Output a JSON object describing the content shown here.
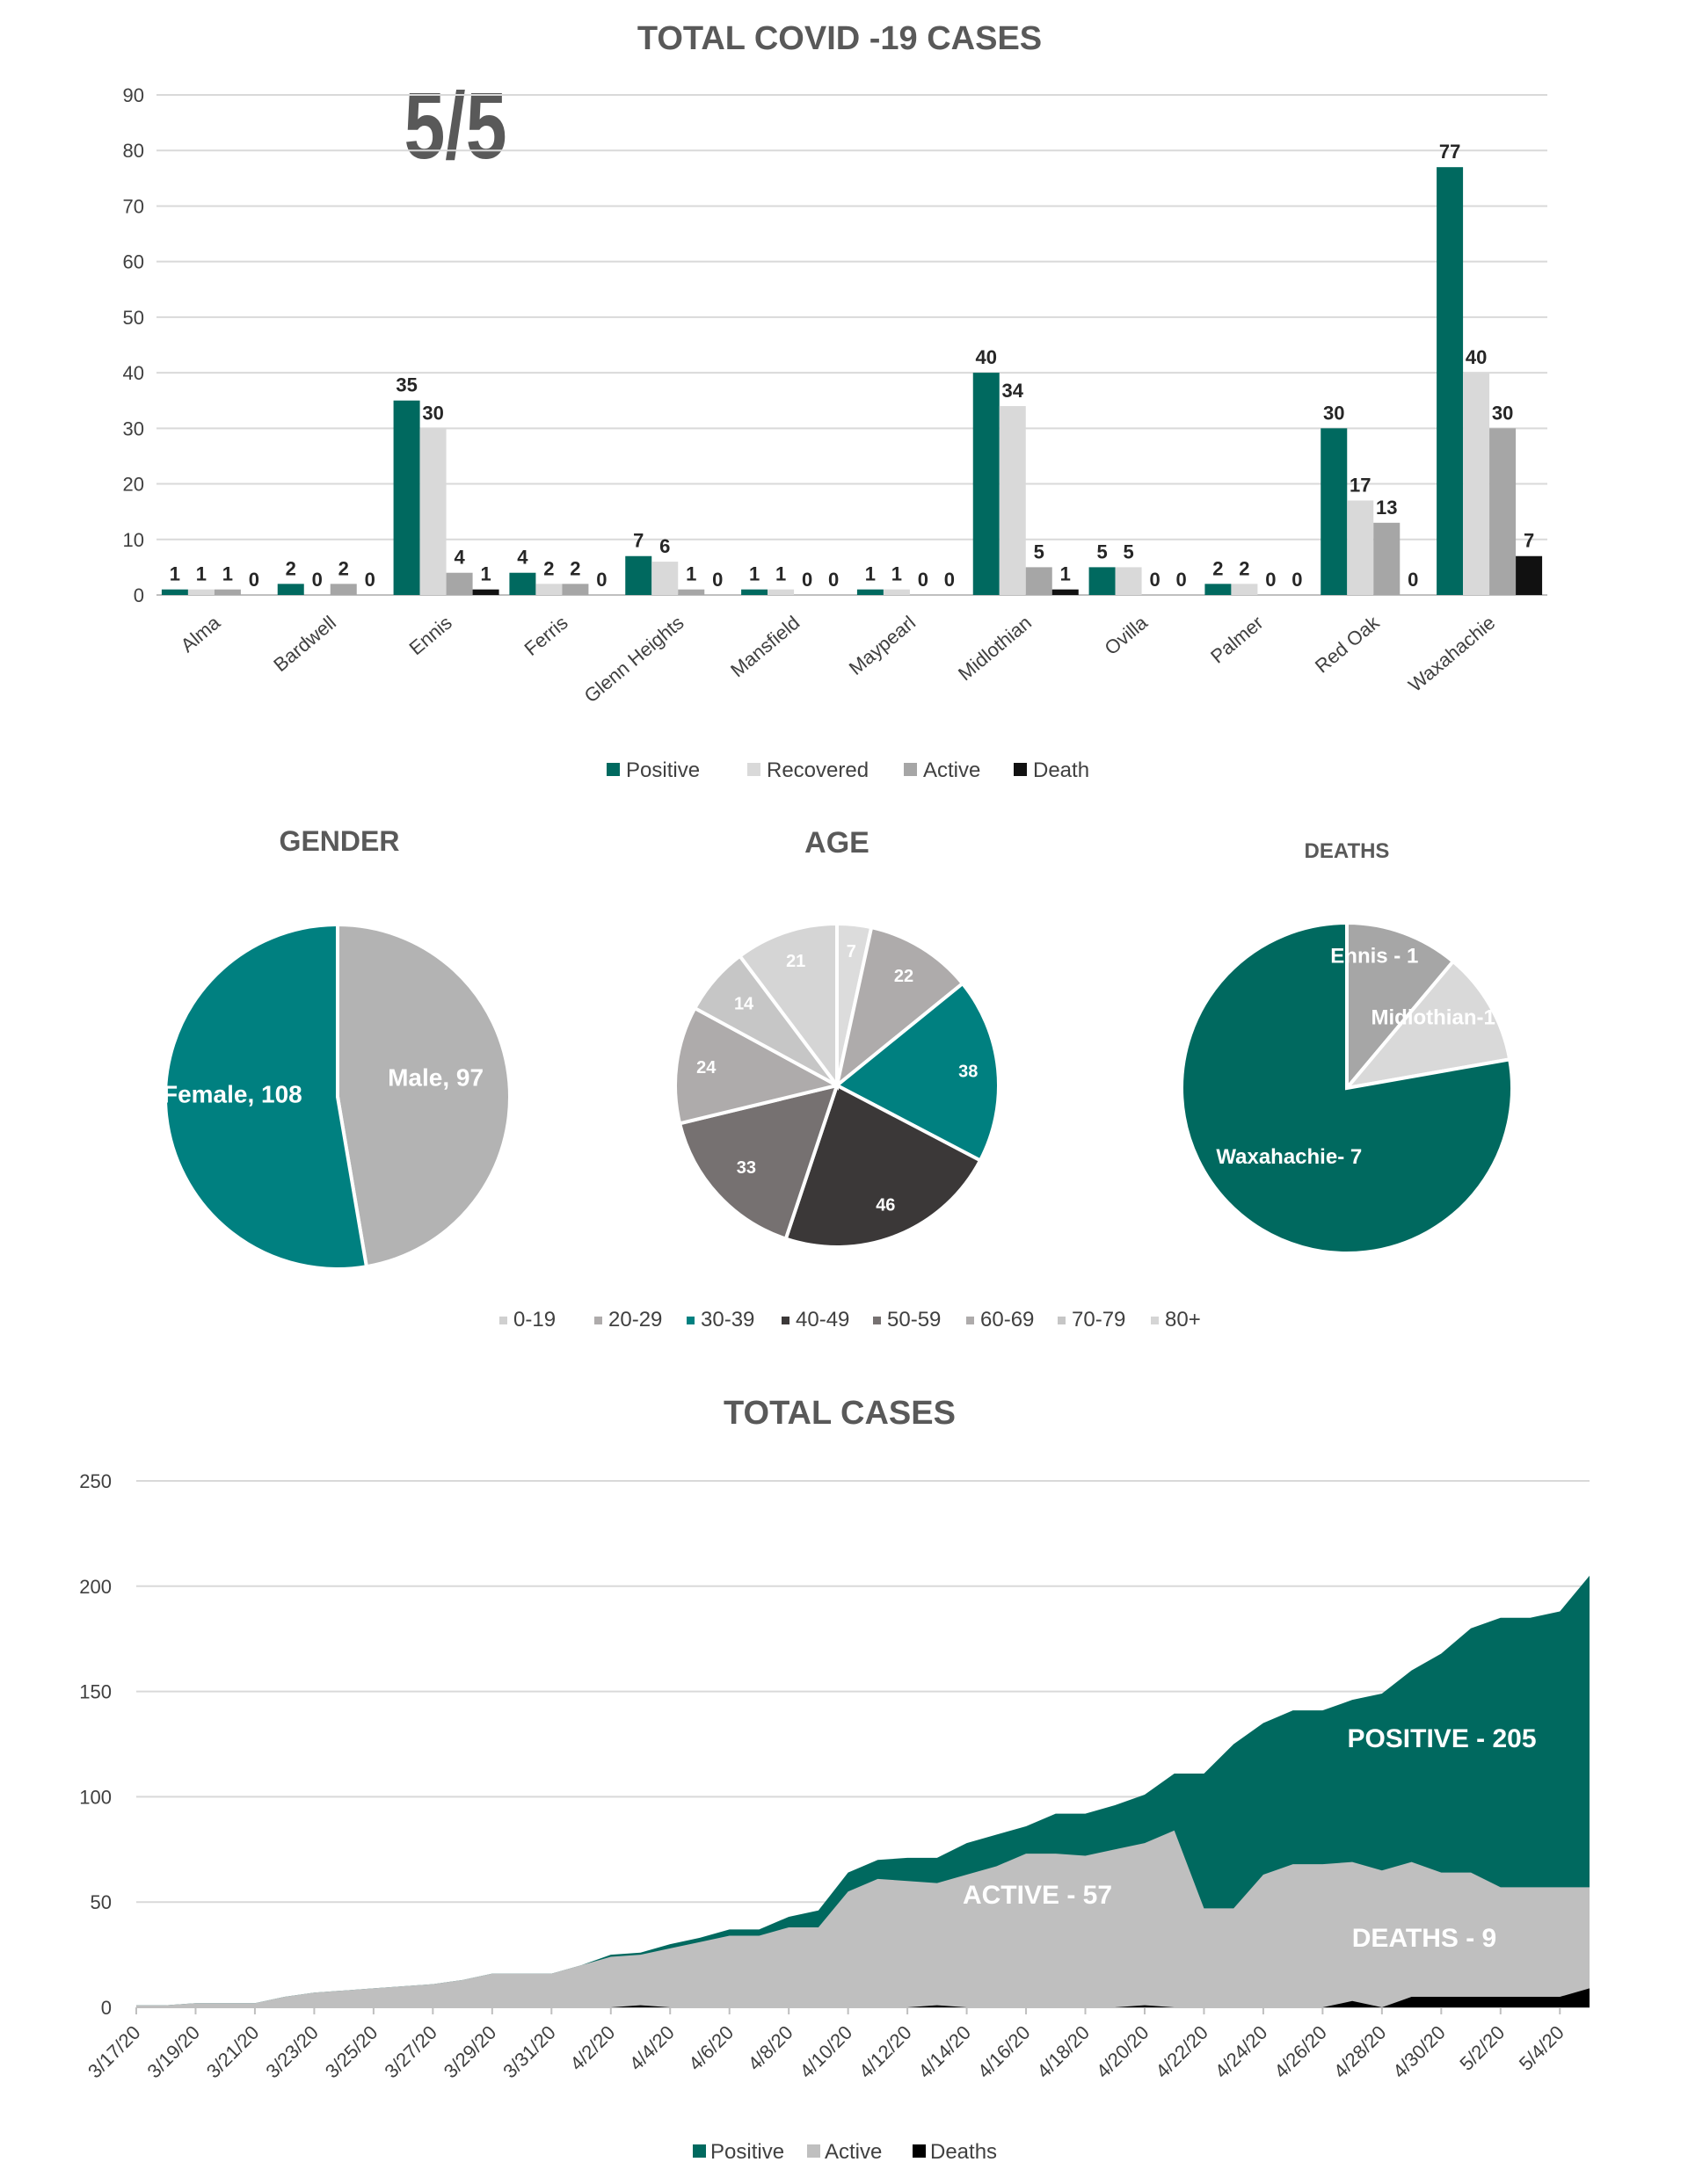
{
  "chart_data": [
    {
      "type": "bar",
      "title": "TOTAL COVID -19 CASES",
      "annotation": "5/5",
      "categories": [
        "Alma",
        "Bardwell",
        "Ennis",
        "Ferris",
        "Glenn Heights",
        "Mansfield",
        "Maypearl",
        "Midlothian",
        "Ovilla",
        "Palmer",
        "Red Oak",
        "Waxahachie"
      ],
      "series": [
        {
          "name": "Positive",
          "color": "#00695f",
          "values": [
            1,
            2,
            35,
            4,
            7,
            1,
            1,
            40,
            5,
            2,
            30,
            77
          ]
        },
        {
          "name": "Recovered",
          "color": "#d9d9d9",
          "values": [
            1,
            0,
            30,
            2,
            6,
            1,
            1,
            34,
            5,
            2,
            17,
            40
          ]
        },
        {
          "name": "Active",
          "color": "#a6a6a6",
          "values": [
            1,
            2,
            4,
            2,
            1,
            0,
            0,
            5,
            0,
            0,
            13,
            30
          ]
        },
        {
          "name": "Death",
          "color": "#111111",
          "values": [
            0,
            0,
            1,
            0,
            0,
            0,
            0,
            1,
            0,
            0,
            0,
            7
          ]
        }
      ],
      "ylim": [
        0,
        90
      ],
      "yticks": [
        0,
        10,
        20,
        30,
        40,
        50,
        60,
        70,
        80,
        90
      ],
      "grid": true,
      "legend": "bottom"
    },
    {
      "type": "pie",
      "title": "GENDER",
      "slices": [
        {
          "label": "Male, 97",
          "value": 97,
          "color": "#b3b3b3"
        },
        {
          "label": "Female, 108",
          "value": 108,
          "color": "#008080"
        }
      ]
    },
    {
      "type": "pie",
      "title": "AGE",
      "slices": [
        {
          "label": "0-19",
          "value": 7,
          "display": "7",
          "color": "#dcdcdc"
        },
        {
          "label": "20-29",
          "value": 22,
          "display": "22",
          "color": "#aeabab"
        },
        {
          "label": "30-39",
          "value": 38,
          "display": "38",
          "color": "#008080"
        },
        {
          "label": "40-49",
          "value": 46,
          "display": "46",
          "color": "#3b3838"
        },
        {
          "label": "50-59",
          "value": 33,
          "display": "33",
          "color": "#767171"
        },
        {
          "label": "60-69",
          "value": 24,
          "display": "24",
          "color": "#aeabab"
        },
        {
          "label": "70-79",
          "value": 14,
          "display": "14",
          "color": "#c6c6c6"
        },
        {
          "label": "80+",
          "value": 21,
          "display": "21",
          "color": "#d5d5d5"
        }
      ],
      "legend": "bottom"
    },
    {
      "type": "pie",
      "title": "DEATHS",
      "slices": [
        {
          "label": "Ennis - 1",
          "value": 1,
          "color": "#a6a6a6"
        },
        {
          "label": "Midlothian-1",
          "value": 1,
          "color": "#d9d9d9"
        },
        {
          "label": "Waxahachie- 7",
          "value": 7,
          "color": "#00695f"
        }
      ]
    },
    {
      "type": "area",
      "title": "TOTAL CASES",
      "x": [
        "3/17/20",
        "3/18/20",
        "3/19/20",
        "3/20/20",
        "3/21/20",
        "3/22/20",
        "3/23/20",
        "3/24/20",
        "3/25/20",
        "3/26/20",
        "3/27/20",
        "3/28/20",
        "3/29/20",
        "3/30/20",
        "3/31/20",
        "4/1/20",
        "4/2/20",
        "4/3/20",
        "4/4/20",
        "4/5/20",
        "4/6/20",
        "4/7/20",
        "4/8/20",
        "4/9/20",
        "4/10/20",
        "4/11/20",
        "4/12/20",
        "4/13/20",
        "4/14/20",
        "4/15/20",
        "4/16/20",
        "4/17/20",
        "4/18/20",
        "4/19/20",
        "4/20/20",
        "4/21/20",
        "4/22/20",
        "4/23/20",
        "4/24/20",
        "4/25/20",
        "4/26/20",
        "4/27/20",
        "4/28/20",
        "4/29/20",
        "4/30/20",
        "5/1/20",
        "5/2/20",
        "5/3/20",
        "5/4/20",
        "5/5/20"
      ],
      "xticks": [
        "3/17/20",
        "3/19/20",
        "3/21/20",
        "3/23/20",
        "3/25/20",
        "3/27/20",
        "3/29/20",
        "3/31/20",
        "4/2/20",
        "4/4/20",
        "4/6/20",
        "4/8/20",
        "4/10/20",
        "4/12/20",
        "4/14/20",
        "4/16/20",
        "4/18/20",
        "4/20/20",
        "4/22/20",
        "4/24/20",
        "4/26/20",
        "4/28/20",
        "4/30/20",
        "5/2/20",
        "5/4/20"
      ],
      "series": [
        {
          "name": "Positive",
          "color": "#00695f",
          "values": [
            1,
            1,
            2,
            2,
            2,
            5,
            7,
            8,
            9,
            10,
            11,
            13,
            16,
            16,
            16,
            20,
            25,
            26,
            30,
            33,
            37,
            37,
            43,
            46,
            64,
            70,
            71,
            71,
            78,
            82,
            86,
            92,
            92,
            96,
            101,
            111,
            111,
            125,
            135,
            141,
            141,
            146,
            149,
            160,
            168,
            180,
            185,
            185,
            188,
            205
          ]
        },
        {
          "name": "Active",
          "color": "#bfbfbf",
          "values": [
            1,
            1,
            2,
            2,
            2,
            5,
            7,
            8,
            9,
            10,
            11,
            13,
            16,
            16,
            16,
            20,
            24,
            25,
            28,
            31,
            34,
            34,
            38,
            38,
            55,
            61,
            60,
            59,
            63,
            67,
            73,
            73,
            72,
            75,
            78,
            84,
            47,
            47,
            63,
            68,
            68,
            69,
            65,
            69,
            64,
            64,
            57,
            57,
            57,
            57
          ]
        },
        {
          "name": "Deaths",
          "color": "#000000",
          "values": [
            0,
            0,
            0,
            0,
            0,
            0,
            0,
            0,
            0,
            0,
            0,
            0,
            0,
            0,
            0,
            0,
            0,
            1,
            0,
            0,
            0,
            0,
            0,
            0,
            0,
            0,
            0,
            1,
            0,
            0,
            0,
            0,
            0,
            0,
            1,
            0,
            0,
            0,
            0,
            0,
            0,
            3,
            0,
            5,
            5,
            5,
            5,
            5,
            5,
            9
          ]
        }
      ],
      "ylim": [
        0,
        250
      ],
      "yticks": [
        0,
        50,
        100,
        150,
        200,
        250
      ],
      "annotations": [
        "POSITIVE - 205",
        "ACTIVE - 57",
        "DEATHS - 9"
      ],
      "grid": true,
      "legend": "bottom"
    }
  ]
}
